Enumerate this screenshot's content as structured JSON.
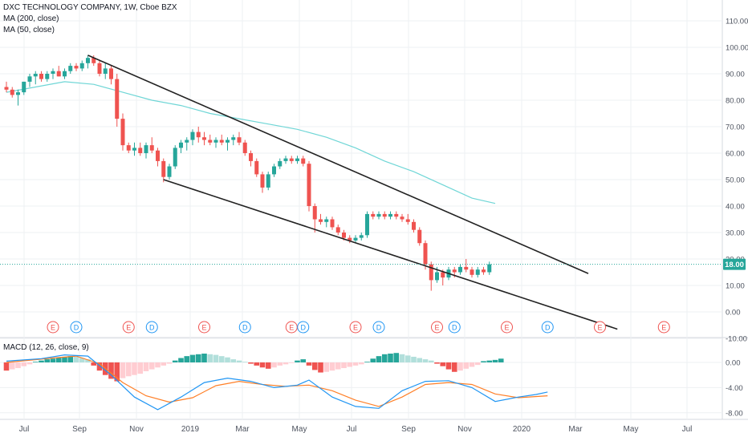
{
  "header": {
    "symbol_line": "DXC TECHNOLOGY COMPANY, 1W, Cboe BZX",
    "ma200_label": "MA (200, close)",
    "ma50_label": "MA (50, close)",
    "macd_label": "MACD (12, 26, close, 9)"
  },
  "colors": {
    "up": "#26a69a",
    "down": "#ef5350",
    "ma50": "#6fd6d6",
    "trendline": "#222222",
    "grid": "#eef0f3",
    "axis_text": "#4c525e",
    "macd_line": "#2196f3",
    "signal_line": "#ff7f27",
    "hist_up_strong": "#26a69a",
    "hist_up_weak": "#b2dfdb",
    "hist_down_strong": "#ef5350",
    "hist_down_weak": "#ffcdd2",
    "price_tag": "#26a69a",
    "earnings_marker": "#ef5350",
    "dividend_marker": "#2196f3"
  },
  "chart_data": [
    {
      "type": "candlestick",
      "title": "DXC TECHNOLOGY COMPANY, 1W, Cboe BZX",
      "ylim": [
        -10,
        120
      ],
      "yticks": [
        -10,
        0,
        10,
        20,
        30,
        40,
        50,
        60,
        70,
        80,
        90,
        100,
        110
      ],
      "ytick_labels": [
        "-10.00",
        "0.00",
        "10.00",
        "20.00",
        "30.00",
        "40.00",
        "50.00",
        "60.00",
        "70.00",
        "80.00",
        "90.00",
        "100.00",
        "110.00"
      ],
      "x_ticks": [
        "Jul",
        "Sep",
        "Nov",
        "2019",
        "Mar",
        "May",
        "Jul",
        "Sep",
        "Nov",
        "2020",
        "Mar",
        "May",
        "Jul"
      ],
      "last_price_label": "18.00",
      "last_price": 18,
      "candles": [
        [
          85,
          87,
          83,
          84
        ],
        [
          84,
          85,
          81,
          82
        ],
        [
          82,
          84,
          78,
          83
        ],
        [
          83,
          87,
          82,
          87
        ],
        [
          87,
          90,
          85,
          89
        ],
        [
          89,
          91,
          86,
          90
        ],
        [
          90,
          91,
          87,
          88
        ],
        [
          88,
          91,
          87,
          90
        ],
        [
          90,
          92,
          88,
          91
        ],
        [
          91,
          93,
          89,
          89
        ],
        [
          89,
          92,
          88,
          91
        ],
        [
          91,
          94,
          90,
          93
        ],
        [
          93,
          94,
          91,
          92
        ],
        [
          92,
          95,
          91,
          94
        ],
        [
          94,
          97,
          92,
          96
        ],
        [
          96,
          97,
          93,
          94
        ],
        [
          94,
          95,
          89,
          90
        ],
        [
          90,
          94,
          88,
          92
        ],
        [
          92,
          93,
          86,
          88
        ],
        [
          88,
          90,
          70,
          73
        ],
        [
          73,
          75,
          61,
          63
        ],
        [
          63,
          64,
          60,
          61
        ],
        [
          61,
          64,
          59,
          62
        ],
        [
          62,
          64,
          59,
          60
        ],
        [
          60,
          64,
          58,
          63
        ],
        [
          63,
          66,
          60,
          61
        ],
        [
          61,
          62,
          55,
          57
        ],
        [
          57,
          58,
          49,
          51
        ],
        [
          51,
          56,
          50,
          55
        ],
        [
          55,
          63,
          54,
          62
        ],
        [
          62,
          65,
          60,
          64
        ],
        [
          64,
          66,
          61,
          65
        ],
        [
          65,
          69,
          63,
          68
        ],
        [
          68,
          70,
          64,
          66
        ],
        [
          66,
          68,
          63,
          65
        ],
        [
          65,
          67,
          63,
          64
        ],
        [
          64,
          66,
          62,
          65
        ],
        [
          65,
          67,
          63,
          64
        ],
        [
          64,
          66,
          61,
          65
        ],
        [
          65,
          67,
          63,
          66
        ],
        [
          66,
          68,
          63,
          64
        ],
        [
          64,
          65,
          59,
          60
        ],
        [
          60,
          61,
          55,
          57
        ],
        [
          57,
          58,
          51,
          52
        ],
        [
          52,
          53,
          45,
          47
        ],
        [
          47,
          53,
          46,
          52
        ],
        [
          52,
          56,
          51,
          55
        ],
        [
          55,
          58,
          54,
          57
        ],
        [
          57,
          59,
          56,
          58
        ],
        [
          58,
          59,
          56,
          57
        ],
        [
          57,
          59,
          56,
          58
        ],
        [
          58,
          59,
          55,
          56
        ],
        [
          56,
          57,
          38,
          40
        ],
        [
          40,
          41,
          30,
          35
        ],
        [
          35,
          37,
          33,
          34
        ],
        [
          34,
          36,
          32,
          35
        ],
        [
          35,
          36,
          31,
          32
        ],
        [
          32,
          33,
          29,
          30
        ],
        [
          30,
          31,
          27,
          28
        ],
        [
          28,
          29,
          26,
          27
        ],
        [
          27,
          29,
          26,
          28
        ],
        [
          28,
          30,
          27,
          29
        ],
        [
          29,
          38,
          28,
          37
        ],
        [
          37,
          38,
          35,
          36
        ],
        [
          36,
          38,
          35,
          37
        ],
        [
          37,
          38,
          35,
          36
        ],
        [
          36,
          38,
          35,
          37
        ],
        [
          37,
          38,
          35,
          36
        ],
        [
          36,
          37,
          34,
          35
        ],
        [
          35,
          37,
          33,
          34
        ],
        [
          34,
          35,
          30,
          31
        ],
        [
          31,
          32,
          25,
          26
        ],
        [
          26,
          27,
          16,
          18
        ],
        [
          18,
          19,
          8,
          12
        ],
        [
          12,
          17,
          11,
          15
        ],
        [
          15,
          16,
          10,
          13
        ],
        [
          13,
          17,
          12,
          16
        ],
        [
          16,
          17,
          13,
          15
        ],
        [
          15,
          18,
          14,
          17
        ],
        [
          17,
          20,
          15,
          16
        ],
        [
          16,
          17,
          13,
          14
        ],
        [
          14,
          17,
          13,
          16
        ],
        [
          16,
          17,
          14,
          15
        ],
        [
          15,
          19,
          14,
          18
        ]
      ],
      "ma50": [
        [
          0,
          83
        ],
        [
          5,
          85
        ],
        [
          10,
          87
        ],
        [
          15,
          86
        ],
        [
          20,
          83
        ],
        [
          25,
          80
        ],
        [
          30,
          78
        ],
        [
          35,
          75
        ],
        [
          40,
          73
        ],
        [
          45,
          71
        ],
        [
          50,
          69
        ],
        [
          55,
          66
        ],
        [
          60,
          62
        ],
        [
          65,
          57
        ],
        [
          70,
          53
        ],
        [
          75,
          48
        ],
        [
          80,
          43
        ],
        [
          84,
          41
        ]
      ],
      "trendlines": [
        {
          "from": [
            14,
            97
          ],
          "to": [
            100,
            14.5
          ]
        },
        {
          "from": [
            27,
            50
          ],
          "to": [
            105,
            -6.5
          ]
        }
      ],
      "events": [
        {
          "kind": "E",
          "i": 8
        },
        {
          "kind": "D",
          "i": 12
        },
        {
          "kind": "E",
          "i": 21
        },
        {
          "kind": "D",
          "i": 25
        },
        {
          "kind": "E",
          "i": 34
        },
        {
          "kind": "D",
          "i": 41
        },
        {
          "kind": "E",
          "i": 49
        },
        {
          "kind": "D",
          "i": 51
        },
        {
          "kind": "E",
          "i": 60
        },
        {
          "kind": "D",
          "i": 64
        },
        {
          "kind": "E",
          "i": 74
        },
        {
          "kind": "D",
          "i": 77
        },
        {
          "kind": "E",
          "i": 86
        },
        {
          "kind": "D",
          "i": 93
        },
        {
          "kind": "E",
          "i": 102
        },
        {
          "kind": "E",
          "i": 113
        }
      ]
    },
    {
      "type": "macd",
      "title": "MACD (12, 26, close, 9)",
      "ylim": [
        -9.5,
        2.5
      ],
      "yticks": [
        0,
        -4,
        -8
      ],
      "ytick_labels": [
        "0.00",
        "-4.00",
        "-8.00"
      ],
      "histogram": [
        -1.3,
        -1.1,
        -0.9,
        -0.6,
        -0.3,
        0.1,
        0.3,
        0.5,
        0.6,
        0.8,
        0.9,
        1.0,
        0.9,
        0.7,
        0.5,
        -0.5,
        -1.3,
        -2.0,
        -2.6,
        -3.0,
        -2.5,
        -2.2,
        -2.0,
        -1.8,
        -1.4,
        -1.1,
        -0.8,
        -0.5,
        -0.2,
        0.3,
        0.7,
        1.0,
        1.2,
        1.3,
        1.4,
        1.3,
        1.2,
        1.0,
        0.8,
        0.5,
        0.3,
        0.1,
        -0.2,
        -0.5,
        -0.8,
        -1.0,
        -0.8,
        -0.5,
        -0.3,
        -0.1,
        0.3,
        0.5,
        -0.5,
        -1.2,
        -1.6,
        -1.5,
        -1.3,
        -1.1,
        -0.9,
        -0.7,
        -0.5,
        -0.3,
        0.1,
        0.6,
        1.0,
        1.3,
        1.4,
        1.5,
        1.3,
        1.1,
        0.9,
        0.7,
        0.5,
        0.3,
        -0.2,
        -0.6,
        -1.1,
        -1.5,
        -1.3,
        -1.0,
        -0.7,
        -0.4,
        0.2,
        0.3,
        0.4,
        0.6
      ],
      "macd": [
        [
          0,
          0.2
        ],
        [
          6,
          0.6
        ],
        [
          10,
          1.2
        ],
        [
          14,
          1.0
        ],
        [
          18,
          -2.0
        ],
        [
          22,
          -5.5
        ],
        [
          26,
          -7.5
        ],
        [
          30,
          -5.5
        ],
        [
          34,
          -3.2
        ],
        [
          38,
          -2.5
        ],
        [
          42,
          -3.0
        ],
        [
          46,
          -4.0
        ],
        [
          50,
          -3.6
        ],
        [
          52,
          -2.8
        ],
        [
          56,
          -5.5
        ],
        [
          60,
          -7.0
        ],
        [
          64,
          -7.3
        ],
        [
          68,
          -4.5
        ],
        [
          72,
          -3.0
        ],
        [
          76,
          -2.9
        ],
        [
          80,
          -4.0
        ],
        [
          84,
          -6.2
        ],
        [
          88,
          -5.5
        ],
        [
          91,
          -5.1
        ],
        [
          93,
          -4.7
        ]
      ],
      "signal": [
        [
          0,
          0.0
        ],
        [
          8,
          0.7
        ],
        [
          12,
          1.0
        ],
        [
          16,
          -0.2
        ],
        [
          20,
          -3.2
        ],
        [
          24,
          -5.3
        ],
        [
          28,
          -6.3
        ],
        [
          32,
          -5.6
        ],
        [
          36,
          -3.7
        ],
        [
          40,
          -3.0
        ],
        [
          44,
          -3.5
        ],
        [
          48,
          -3.8
        ],
        [
          52,
          -3.6
        ],
        [
          56,
          -4.5
        ],
        [
          60,
          -6.0
        ],
        [
          64,
          -7.0
        ],
        [
          68,
          -5.5
        ],
        [
          72,
          -3.5
        ],
        [
          76,
          -3.2
        ],
        [
          80,
          -3.5
        ],
        [
          84,
          -5.0
        ],
        [
          88,
          -5.6
        ],
        [
          93,
          -5.3
        ]
      ]
    }
  ]
}
